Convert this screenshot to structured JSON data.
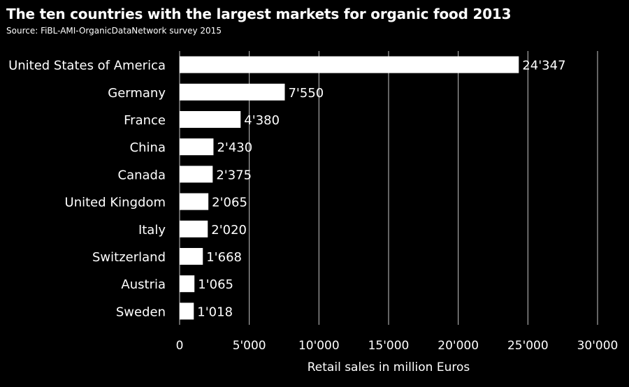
{
  "chart_data": {
    "type": "bar",
    "orientation": "horizontal",
    "title": "The ten countries with the largest markets for organic food  2013",
    "subtitle": "Source: FiBL-AMI-OrganicDataNetwork survey 2015",
    "xlabel": "Retail sales in million Euros",
    "ylabel": "",
    "xlim": [
      0,
      30000
    ],
    "x_ticks": [
      "0",
      "5'000",
      "10'000",
      "15'000",
      "20'000",
      "25'000",
      "30'000"
    ],
    "grid": "vertical",
    "categories": [
      "United States of America",
      "Germany",
      "France",
      "China",
      "Canada",
      "United Kingdom",
      "Italy",
      "Switzerland",
      "Austria",
      "Sweden"
    ],
    "values": [
      24347,
      7550,
      4380,
      2430,
      2375,
      2065,
      2020,
      1668,
      1065,
      1018
    ],
    "value_labels": [
      "24'347",
      "7'550",
      "4'380",
      "2'430",
      "2'375",
      "2'065",
      "2'020",
      "1'668",
      "1'065",
      "1'018"
    ],
    "colors": {
      "background": "#000000",
      "bar": "#ffffff",
      "text": "#ffffff",
      "grid": "#c8c8c8"
    }
  }
}
